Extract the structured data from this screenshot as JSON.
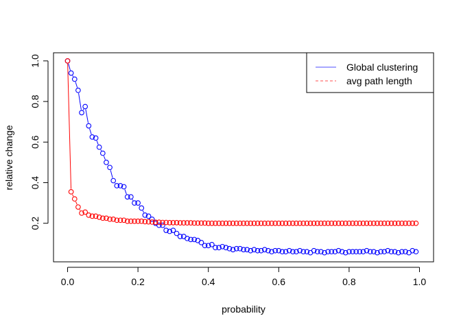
{
  "chart_data": {
    "type": "line",
    "xlabel": "probability",
    "ylabel": "relative change",
    "xlim": [
      -0.04,
      1.04
    ],
    "ylim": [
      0.01,
      1.04
    ],
    "xticks": [
      0.0,
      0.2,
      0.4,
      0.6,
      0.8,
      1.0
    ],
    "xtick_labels": [
      "0.0",
      "0.2",
      "0.4",
      "0.6",
      "0.8",
      "1.0"
    ],
    "yticks": [
      0.2,
      0.4,
      0.6,
      0.8,
      1.0
    ],
    "ytick_labels": [
      "0.2",
      "0.4",
      "0.6",
      "0.8",
      "1.0"
    ],
    "legend": {
      "position": "top-right",
      "entries": [
        {
          "label": "Global clustering",
          "color": "#4d4dff",
          "linestyle": "solid"
        },
        {
          "label": "avg path length",
          "color": "#ff4d4d",
          "linestyle": "dashed"
        }
      ]
    },
    "series": [
      {
        "name": "Global clustering",
        "color": "#0000ff",
        "marker": "open-circle",
        "line": "solid",
        "x": [
          0.0,
          0.01,
          0.02,
          0.03,
          0.04,
          0.05,
          0.06,
          0.07,
          0.08,
          0.09,
          0.1,
          0.11,
          0.12,
          0.13,
          0.14,
          0.15,
          0.16,
          0.17,
          0.18,
          0.19,
          0.2,
          0.21,
          0.22,
          0.23,
          0.24,
          0.25,
          0.26,
          0.27,
          0.28,
          0.29,
          0.3,
          0.31,
          0.32,
          0.33,
          0.34,
          0.35,
          0.36,
          0.37,
          0.38,
          0.39,
          0.4,
          0.41,
          0.42,
          0.43,
          0.44,
          0.45,
          0.46,
          0.47,
          0.48,
          0.49,
          0.5,
          0.51,
          0.52,
          0.53,
          0.54,
          0.55,
          0.56,
          0.57,
          0.58,
          0.59,
          0.6,
          0.61,
          0.62,
          0.63,
          0.64,
          0.65,
          0.66,
          0.67,
          0.68,
          0.69,
          0.7,
          0.71,
          0.72,
          0.73,
          0.74,
          0.75,
          0.76,
          0.77,
          0.78,
          0.79,
          0.8,
          0.81,
          0.82,
          0.83,
          0.84,
          0.85,
          0.86,
          0.87,
          0.88,
          0.89,
          0.9,
          0.91,
          0.92,
          0.93,
          0.94,
          0.95,
          0.96,
          0.97,
          0.98,
          0.99
        ],
        "values": [
          1.0,
          0.94,
          0.91,
          0.855,
          0.745,
          0.775,
          0.68,
          0.625,
          0.62,
          0.575,
          0.545,
          0.5,
          0.475,
          0.41,
          0.385,
          0.385,
          0.38,
          0.33,
          0.33,
          0.3,
          0.3,
          0.275,
          0.24,
          0.235,
          0.22,
          0.2,
          0.19,
          0.19,
          0.165,
          0.16,
          0.165,
          0.15,
          0.135,
          0.135,
          0.125,
          0.12,
          0.12,
          0.115,
          0.105,
          0.09,
          0.09,
          0.095,
          0.08,
          0.08,
          0.085,
          0.08,
          0.075,
          0.07,
          0.075,
          0.075,
          0.07,
          0.07,
          0.065,
          0.07,
          0.065,
          0.065,
          0.07,
          0.065,
          0.06,
          0.065,
          0.065,
          0.06,
          0.06,
          0.065,
          0.06,
          0.06,
          0.065,
          0.06,
          0.06,
          0.055,
          0.065,
          0.06,
          0.06,
          0.055,
          0.06,
          0.06,
          0.06,
          0.065,
          0.06,
          0.055,
          0.06,
          0.06,
          0.06,
          0.06,
          0.06,
          0.065,
          0.06,
          0.06,
          0.055,
          0.06,
          0.06,
          0.065,
          0.06,
          0.06,
          0.055,
          0.06,
          0.06,
          0.055,
          0.065,
          0.06
        ]
      },
      {
        "name": "avg path length",
        "color": "#ff0000",
        "marker": "open-circle",
        "line": "solid",
        "x": [
          0.0,
          0.01,
          0.02,
          0.03,
          0.04,
          0.05,
          0.06,
          0.07,
          0.08,
          0.09,
          0.1,
          0.11,
          0.12,
          0.13,
          0.14,
          0.15,
          0.16,
          0.17,
          0.18,
          0.19,
          0.2,
          0.21,
          0.22,
          0.23,
          0.24,
          0.25,
          0.26,
          0.27,
          0.28,
          0.29,
          0.3,
          0.31,
          0.32,
          0.33,
          0.34,
          0.35,
          0.36,
          0.37,
          0.38,
          0.39,
          0.4,
          0.41,
          0.42,
          0.43,
          0.44,
          0.45,
          0.46,
          0.47,
          0.48,
          0.49,
          0.5,
          0.51,
          0.52,
          0.53,
          0.54,
          0.55,
          0.56,
          0.57,
          0.58,
          0.59,
          0.6,
          0.61,
          0.62,
          0.63,
          0.64,
          0.65,
          0.66,
          0.67,
          0.68,
          0.69,
          0.7,
          0.71,
          0.72,
          0.73,
          0.74,
          0.75,
          0.76,
          0.77,
          0.78,
          0.79,
          0.8,
          0.81,
          0.82,
          0.83,
          0.84,
          0.85,
          0.86,
          0.87,
          0.88,
          0.89,
          0.9,
          0.91,
          0.92,
          0.93,
          0.94,
          0.95,
          0.96,
          0.97,
          0.98,
          0.99
        ],
        "values": [
          1.0,
          0.355,
          0.32,
          0.28,
          0.25,
          0.255,
          0.24,
          0.235,
          0.235,
          0.23,
          0.225,
          0.225,
          0.22,
          0.22,
          0.215,
          0.215,
          0.215,
          0.21,
          0.21,
          0.21,
          0.21,
          0.21,
          0.208,
          0.207,
          0.206,
          0.205,
          0.205,
          0.204,
          0.204,
          0.203,
          0.203,
          0.203,
          0.202,
          0.202,
          0.202,
          0.202,
          0.201,
          0.201,
          0.201,
          0.201,
          0.2,
          0.2,
          0.2,
          0.2,
          0.2,
          0.2,
          0.2,
          0.2,
          0.2,
          0.2,
          0.2,
          0.2,
          0.2,
          0.2,
          0.2,
          0.2,
          0.2,
          0.2,
          0.2,
          0.2,
          0.2,
          0.2,
          0.2,
          0.2,
          0.2,
          0.2,
          0.2,
          0.2,
          0.2,
          0.2,
          0.2,
          0.2,
          0.2,
          0.2,
          0.2,
          0.2,
          0.2,
          0.2,
          0.2,
          0.2,
          0.2,
          0.2,
          0.2,
          0.2,
          0.2,
          0.2,
          0.2,
          0.2,
          0.2,
          0.2,
          0.2,
          0.2,
          0.2,
          0.2,
          0.2,
          0.2,
          0.2,
          0.2,
          0.2,
          0.2
        ]
      }
    ]
  }
}
